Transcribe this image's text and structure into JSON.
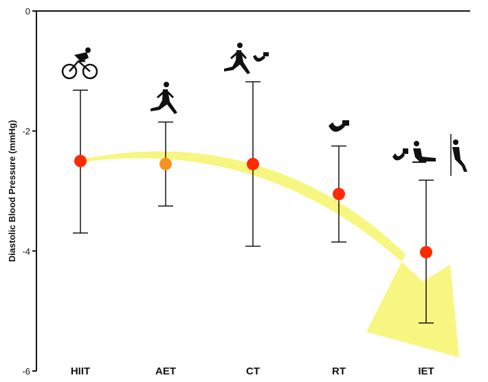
{
  "chart_data": {
    "type": "scatter",
    "title": "",
    "xlabel": "",
    "ylabel": "Diastolic Blood Pressure (mmHg)",
    "categories": [
      "HIIT",
      "AET",
      "CT",
      "RT",
      "IET"
    ],
    "series": [
      {
        "values": [
          -2.5,
          -2.55,
          -2.55,
          -3.05,
          -4.02
        ],
        "ci_lower": [
          -3.7,
          -3.25,
          -3.92,
          -3.85,
          -5.2
        ],
        "ci_upper": [
          -1.32,
          -1.85,
          -1.18,
          -2.25,
          -2.82
        ],
        "point_colors": [
          "#ff2a00",
          "#f7931e",
          "#ff2a00",
          "#ff2a00",
          "#ff2a00"
        ]
      }
    ],
    "ylim": [
      -6,
      0
    ],
    "yticks": [
      0,
      -2,
      -4,
      -6
    ],
    "tick_labels": [
      "0",
      "-2",
      "-4",
      "-6"
    ],
    "grid": false,
    "annotations": {
      "trend_arrow_color": "#f4f46a",
      "icons": [
        "cyclist-icon",
        "runner-icon",
        "runner-and-curl-icon",
        "arm-curl-icon",
        "isometric-exercises-icon"
      ]
    }
  }
}
